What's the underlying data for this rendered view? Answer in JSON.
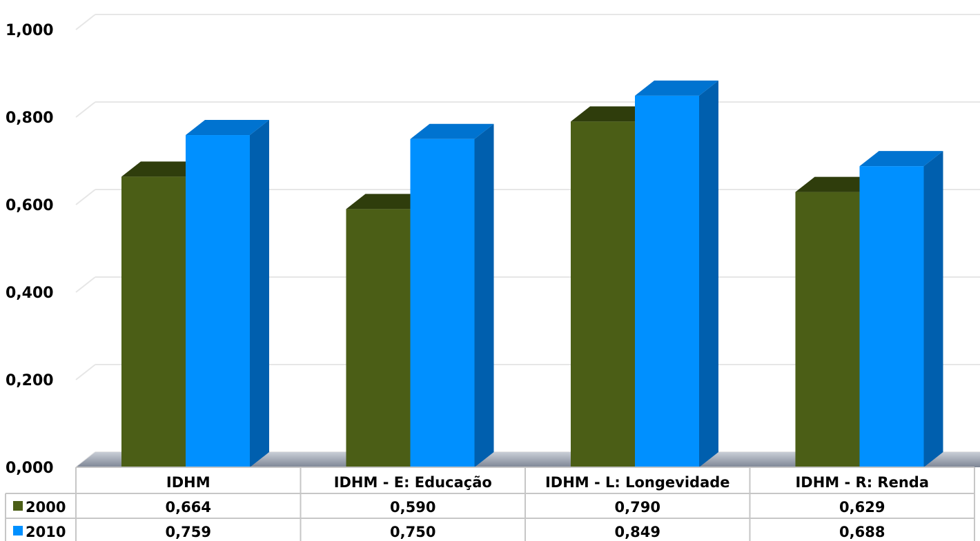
{
  "chart_data": {
    "type": "bar",
    "categories": [
      "IDHM",
      "IDHM - E: Educação",
      "IDHM - L: Longevidade",
      "IDHM - R: Renda"
    ],
    "series": [
      {
        "name": "2000",
        "values": [
          0.664,
          0.59,
          0.79,
          0.629
        ],
        "color": "#4b5e16",
        "top_color": "#2f3d0c",
        "side_color": "#34450f"
      },
      {
        "name": "2010",
        "values": [
          0.759,
          0.75,
          0.849,
          0.688
        ],
        "color": "#0090ff",
        "top_color": "#0073d0",
        "side_color": "#005fae"
      }
    ],
    "value_labels": {
      "2000": [
        "0,664",
        "0,590",
        "0,790",
        "0,629"
      ],
      "2010": [
        "0,759",
        "0,750",
        "0,849",
        "0,688"
      ]
    },
    "y_ticks": [
      "0,000",
      "0,200",
      "0,400",
      "0,600",
      "0,800",
      "1,000"
    ],
    "ylim": [
      0,
      1
    ],
    "grid": true,
    "legend": "data-table"
  }
}
